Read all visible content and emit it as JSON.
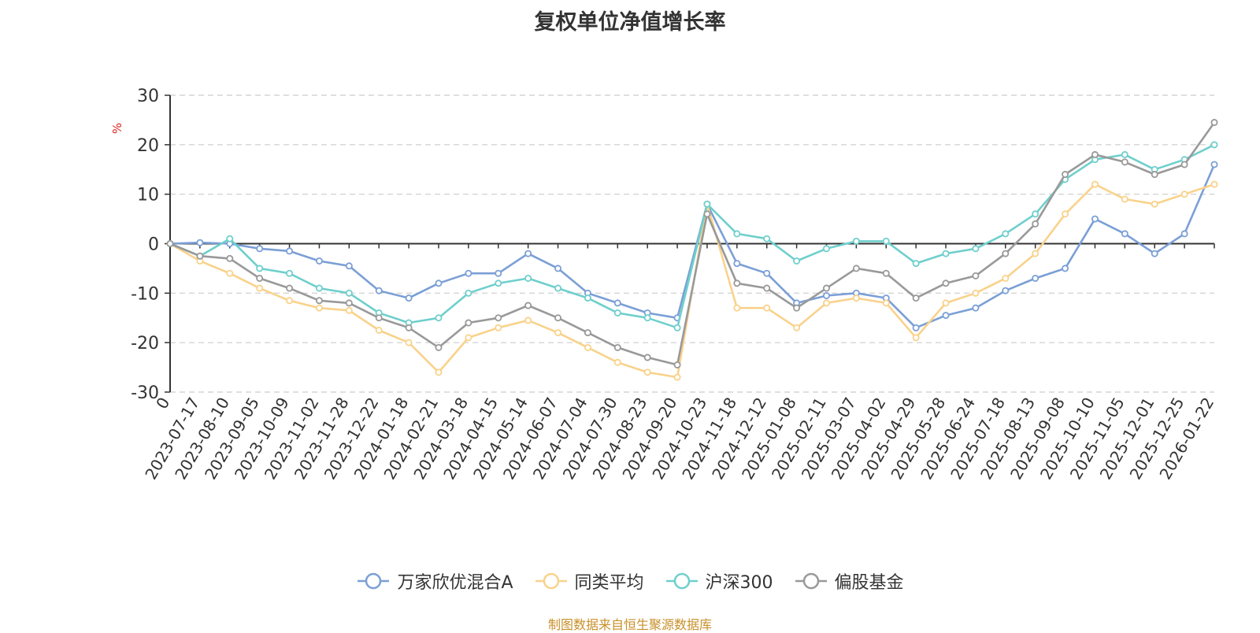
{
  "chart_data": {
    "type": "line",
    "title": "复权单位净值增长率",
    "ylabel": "%",
    "ylim": [
      -30,
      30
    ],
    "yticks": [
      30,
      20,
      10,
      0,
      -10,
      -20,
      -30
    ],
    "grid": true,
    "legend_position": "bottom",
    "x": [
      "0",
      "2023-07-17",
      "2023-08-10",
      "2023-09-05",
      "2023-10-09",
      "2023-11-02",
      "2023-11-28",
      "2023-12-22",
      "2024-01-18",
      "2024-02-21",
      "2024-03-18",
      "2024-04-15",
      "2024-05-14",
      "2024-06-07",
      "2024-07-04",
      "2024-07-30",
      "2024-08-23",
      "2024-09-20",
      "2024-10-23",
      "2024-11-18",
      "2024-12-12",
      "2025-01-08",
      "2025-02-11",
      "2025-03-07",
      "2025-04-02",
      "2025-04-29",
      "2025-05-28",
      "2025-06-24",
      "2025-07-18",
      "2025-08-13",
      "2025-09-08",
      "2025-10-10",
      "2025-11-05",
      "2025-12-01",
      "2025-12-25",
      "2026-01-22"
    ],
    "series": [
      {
        "name": "万家欣优混合A",
        "color": "#7b9fd6",
        "values": [
          0,
          0.2,
          0,
          -1,
          -1.5,
          -3.5,
          -4.5,
          -9.5,
          -11,
          -8,
          -6,
          -6,
          -2,
          -5,
          -10,
          -12,
          -14,
          -15,
          8,
          -4,
          -6,
          -12,
          -10.5,
          -10,
          -11,
          -17,
          -14.5,
          -13,
          -9.5,
          -7,
          -5,
          5,
          2,
          -2,
          2,
          16
        ]
      },
      {
        "name": "同类平均",
        "color": "#f9d28b",
        "values": [
          0,
          -3.5,
          -6,
          -9,
          -11.5,
          -13,
          -13.5,
          -17.5,
          -20,
          -26,
          -19,
          -17,
          -15.5,
          -18,
          -21,
          -24,
          -26,
          -27,
          8,
          -13,
          -13,
          -17,
          -12,
          -11,
          -12,
          -19,
          -12,
          -10,
          -7,
          -2,
          6,
          12,
          9,
          8,
          10,
          12
        ]
      },
      {
        "name": "沪深300",
        "color": "#6fcfcc",
        "values": [
          0,
          -2.5,
          1,
          -5,
          -6,
          -9,
          -10,
          -14,
          -16,
          -15,
          -10,
          -8,
          -7,
          -9,
          -11,
          -14,
          -15,
          -17,
          8,
          2,
          1,
          -3.5,
          -1,
          0.5,
          0.5,
          -4,
          -2,
          -1,
          2,
          6,
          13,
          17,
          18,
          15,
          17,
          20
        ]
      },
      {
        "name": "偏股基金",
        "color": "#999999",
        "values": [
          0,
          -2.5,
          -3,
          -7,
          -9,
          -11.5,
          -12,
          -15,
          -17,
          -21,
          -16,
          -15,
          -12.5,
          -15,
          -18,
          -21,
          -23,
          -24.5,
          6,
          -8,
          -9,
          -13,
          -9,
          -5,
          -6,
          -11,
          -8,
          -6.5,
          -2,
          4,
          14,
          18,
          16.5,
          14,
          16,
          24.5
        ]
      }
    ],
    "source_note": "制图数据来自恒生聚源数据库"
  }
}
